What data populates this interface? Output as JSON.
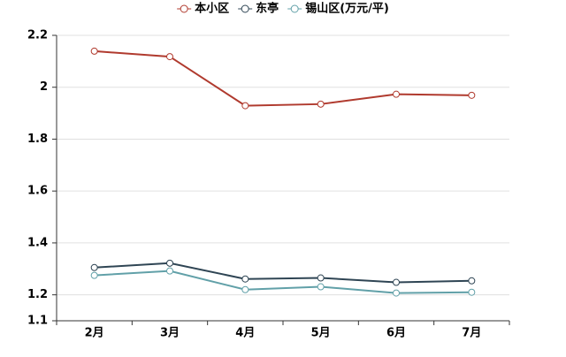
{
  "chart_data": {
    "type": "line",
    "categories": [
      "2月",
      "3月",
      "4月",
      "5月",
      "6月",
      "7月"
    ],
    "series": [
      {
        "name": "本小区",
        "color": "#b03a2e",
        "values": [
          2.139,
          2.118,
          1.929,
          1.935,
          1.973,
          1.969
        ]
      },
      {
        "name": "东亭",
        "color": "#2f4554",
        "values": [
          1.305,
          1.322,
          1.261,
          1.265,
          1.248,
          1.254
        ]
      },
      {
        "name": "锡山区(万元/平)",
        "color": "#61a0a8",
        "values": [
          1.275,
          1.292,
          1.22,
          1.231,
          1.207,
          1.21
        ]
      }
    ],
    "ylim": [
      1.1,
      2.2
    ],
    "yticks": [
      1.1,
      1.2,
      1.4,
      1.6,
      1.8,
      2,
      2.2
    ],
    "grid": true,
    "legend": "top"
  }
}
